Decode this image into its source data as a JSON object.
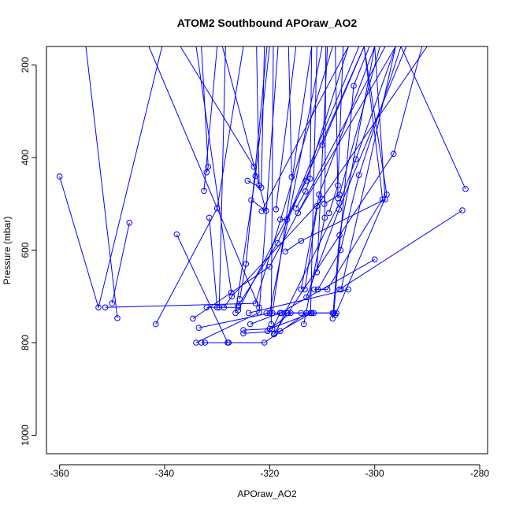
{
  "chart_data": {
    "type": "line",
    "title": "ATOM2 Southbound APOraw_AO2",
    "xlabel": "APOraw_AO2",
    "ylabel": "Pressure (mbar)",
    "xlim": [
      -362.5,
      -278.5
    ],
    "ylim": [
      1040,
      160
    ],
    "y_reversed": true,
    "grid": false,
    "legend": "none",
    "x_ticks": [
      -360,
      -340,
      -320,
      -300,
      -280
    ],
    "y_ticks": [
      200,
      400,
      600,
      800,
      1000
    ],
    "series_color": "#0000ff",
    "profiles": [
      [
        [
          -360.0,
          441
        ],
        [
          -352.6,
          724
        ],
        [
          -340.5,
          160
        ]
      ],
      [
        [
          -351.3,
          724
        ],
        [
          -322.7,
          715
        ],
        [
          -308.0,
          160
        ]
      ],
      [
        [
          -349.0,
          747
        ],
        [
          -355.0,
          160
        ]
      ],
      [
        [
          -346.7,
          541
        ],
        [
          -350.0,
          715
        ]
      ],
      [
        [
          -343.0,
          160
        ],
        [
          -322.0,
          724
        ]
      ],
      [
        [
          -341.7,
          760
        ],
        [
          -330.0,
          510
        ],
        [
          -325.0,
          160
        ]
      ],
      [
        [
          -337.7,
          566
        ],
        [
          -328.0,
          800
        ]
      ],
      [
        [
          -334.6,
          748
        ],
        [
          -320.0,
          636
        ],
        [
          -298.0,
          160
        ]
      ],
      [
        [
          -334.0,
          800
        ],
        [
          -322.0,
          735
        ],
        [
          -318.4,
          160
        ]
      ],
      [
        [
          -333.5,
          768
        ],
        [
          -320.0,
          736
        ],
        [
          -310.0,
          160
        ]
      ],
      [
        [
          -333.0,
          800
        ],
        [
          -327.8,
          800
        ]
      ],
      [
        [
          -332.5,
          472
        ],
        [
          -330.0,
          160
        ]
      ],
      [
        [
          -332.3,
          800
        ],
        [
          -321.0,
          800
        ],
        [
          -313.0,
          736
        ]
      ],
      [
        [
          -332.0,
          724
        ],
        [
          -326.0,
          724
        ]
      ],
      [
        [
          -332.0,
          432
        ],
        [
          -331.7,
          420
        ],
        [
          -333.0,
          160
        ]
      ],
      [
        [
          -331.5,
          530
        ],
        [
          -330.0,
          724
        ]
      ],
      [
        [
          -329.6,
          724
        ],
        [
          -328.4,
          160
        ]
      ],
      [
        [
          -328.7,
          724
        ],
        [
          -327.2,
          700
        ],
        [
          -310.0,
          490
        ]
      ],
      [
        [
          -327.3,
          692
        ],
        [
          -334.0,
          160
        ]
      ],
      [
        [
          -326.5,
          736
        ],
        [
          -322.7,
          440
        ],
        [
          -320.0,
          160
        ]
      ],
      [
        [
          -326.0,
          730
        ],
        [
          -313.0,
          450
        ],
        [
          -305.0,
          160
        ]
      ],
      [
        [
          -326.0,
          720
        ],
        [
          -318.5,
          585
        ],
        [
          -302.0,
          160
        ]
      ],
      [
        [
          -325.7,
          706
        ],
        [
          -324.5,
          630
        ],
        [
          -320.5,
          160
        ]
      ],
      [
        [
          -325.0,
          780
        ],
        [
          -318.0,
          775
        ],
        [
          -312.0,
          736
        ]
      ],
      [
        [
          -325.0,
          773
        ],
        [
          -320.0,
          770
        ],
        [
          -312.0,
          736
        ]
      ],
      [
        [
          -324.2,
          450
        ],
        [
          -321.6,
          465
        ],
        [
          -321.0,
          160
        ]
      ],
      [
        [
          -324.0,
          736
        ],
        [
          -305.0,
          685
        ]
      ],
      [
        [
          -323.7,
          760
        ],
        [
          -318.0,
          736
        ],
        [
          -300.0,
          620
        ]
      ],
      [
        [
          -323.5,
          492
        ],
        [
          -320.7,
          515
        ],
        [
          -329.0,
          160
        ]
      ],
      [
        [
          -323.0,
          420
        ],
        [
          -337.0,
          160
        ]
      ],
      [
        [
          -322.0,
          460
        ],
        [
          -322.5,
          160
        ]
      ],
      [
        [
          -321.5,
          516
        ],
        [
          -305.0,
          160
        ]
      ],
      [
        [
          -320.6,
          736
        ],
        [
          -314.0,
          736
        ],
        [
          -311.6,
          736
        ]
      ],
      [
        [
          -320.4,
          775
        ],
        [
          -316.0,
          736
        ],
        [
          -308.0,
          736
        ]
      ],
      [
        [
          -319.7,
          760
        ],
        [
          -319.3,
          160
        ]
      ],
      [
        [
          -319.5,
          770
        ],
        [
          -318.0,
          736
        ]
      ],
      [
        [
          -319.5,
          736
        ],
        [
          -312.0,
          160
        ]
      ],
      [
        [
          -319.2,
          782
        ],
        [
          -316.7,
          736
        ],
        [
          -307.8,
          736
        ]
      ],
      [
        [
          -319.0,
          780
        ],
        [
          -306.7,
          498
        ],
        [
          -303.6,
          404
        ],
        [
          -296.0,
          160
        ]
      ],
      [
        [
          -318.8,
          512
        ],
        [
          -315.0,
          160
        ]
      ],
      [
        [
          -318.0,
          534
        ],
        [
          -316.7,
          534
        ],
        [
          -303.0,
          160
        ]
      ],
      [
        [
          -317.7,
          736
        ],
        [
          -307.3,
          736
        ]
      ],
      [
        [
          -317.0,
          603
        ],
        [
          -314.0,
          580
        ],
        [
          -298.0,
          490
        ],
        [
          -300.0,
          160
        ]
      ],
      [
        [
          -316.5,
          736
        ],
        [
          -296.4,
          392
        ],
        [
          -291.0,
          160
        ]
      ],
      [
        [
          -315.8,
          442
        ],
        [
          -316.4,
          160
        ]
      ],
      [
        [
          -315.0,
          510
        ],
        [
          -313.2,
          473
        ],
        [
          -312.3,
          446
        ],
        [
          -312.0,
          160
        ]
      ],
      [
        [
          -314.6,
          520
        ],
        [
          -296.0,
          160
        ]
      ],
      [
        [
          -314.0,
          685
        ],
        [
          -311.0,
          505
        ],
        [
          -290.0,
          160
        ]
      ],
      [
        [
          -313.5,
          760
        ],
        [
          -309.5,
          530
        ],
        [
          -309.3,
          160
        ]
      ],
      [
        [
          -313.3,
          685
        ],
        [
          -310.6,
          480
        ],
        [
          -300.0,
          160
        ]
      ],
      [
        [
          -313.0,
          702
        ],
        [
          -306.8,
          512
        ],
        [
          -294.0,
          160
        ]
      ],
      [
        [
          -312.2,
          736
        ],
        [
          -311.0,
          160
        ]
      ],
      [
        [
          -311.5,
          685
        ],
        [
          -309.0,
          685
        ],
        [
          -298.5,
          490
        ],
        [
          -302.0,
          160
        ]
      ],
      [
        [
          -311.0,
          648
        ],
        [
          -309.0,
          160
        ]
      ],
      [
        [
          -310.8,
          685
        ],
        [
          -306.5,
          600
        ],
        [
          -303.0,
          438
        ],
        [
          -295.0,
          160
        ]
      ],
      [
        [
          -310.0,
          373
        ],
        [
          -302.0,
          160
        ]
      ],
      [
        [
          -309.6,
          500
        ],
        [
          -306.7,
          480
        ],
        [
          -299.0,
          160
        ]
      ],
      [
        [
          -308.7,
          520
        ],
        [
          -307.0,
          460
        ],
        [
          -306.0,
          160
        ]
      ],
      [
        [
          -308.0,
          748
        ],
        [
          -306.7,
          568
        ],
        [
          -300.0,
          160
        ]
      ],
      [
        [
          -307.8,
          736
        ],
        [
          -304.0,
          245
        ],
        [
          -301.0,
          160
        ]
      ],
      [
        [
          -307.5,
          740
        ],
        [
          -297.7,
          480
        ],
        [
          -302.0,
          160
        ]
      ],
      [
        [
          -307.0,
          488
        ],
        [
          -307.5,
          160
        ]
      ],
      [
        [
          -306.4,
          685
        ],
        [
          -296.0,
          160
        ]
      ],
      [
        [
          -295.0,
          160
        ],
        [
          -282.7,
          468
        ]
      ],
      [
        [
          -283.3,
          514
        ],
        [
          -306.7,
          685
        ]
      ]
    ]
  }
}
